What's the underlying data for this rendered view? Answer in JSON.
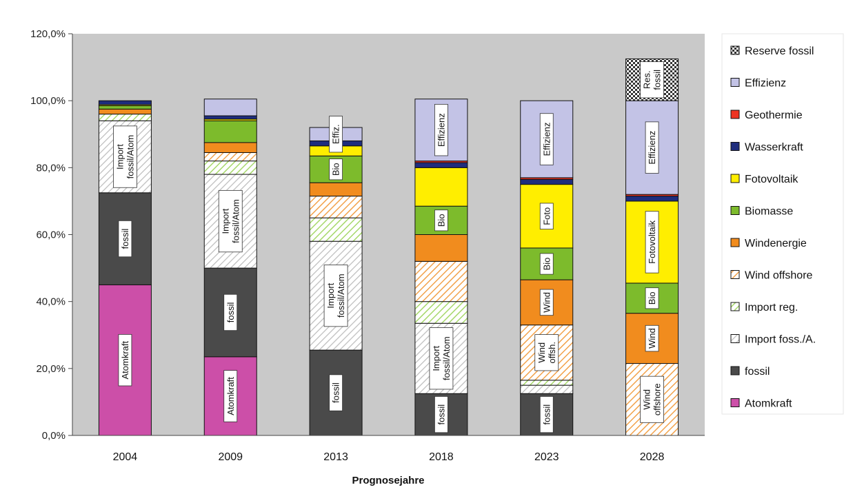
{
  "chart_data": {
    "type": "bar",
    "stacked": true,
    "xlabel": "Prognosejahre",
    "ylabel": "",
    "ylim": [
      0,
      120
    ],
    "yticks": [
      "0,0%",
      "20,0%",
      "40,0%",
      "60,0%",
      "80,0%",
      "100,0%",
      "120,0%"
    ],
    "categories": [
      "2004",
      "2009",
      "2013",
      "2018",
      "2023",
      "2028"
    ],
    "grid": false,
    "legend_position": "right",
    "series": [
      {
        "key": "atom",
        "name": "Atomkraft",
        "color": "#cc4fa8",
        "pattern": "solid",
        "values": [
          45,
          23.5,
          0,
          0,
          0,
          0
        ],
        "labels": [
          "Atomkraft",
          "Atomkraft",
          "",
          "",
          "",
          ""
        ]
      },
      {
        "key": "fossil",
        "name": "fossil",
        "color": "#4a4a4a",
        "pattern": "solid",
        "values": [
          27.5,
          26.5,
          25.5,
          12.5,
          12.5,
          0
        ],
        "labels": [
          "fossil",
          "fossil",
          "fossil",
          "fossil",
          "fossil",
          ""
        ]
      },
      {
        "key": "import_foss",
        "name": "Import foss./A.",
        "color": "#bdbdbd",
        "pattern": "hatch",
        "values": [
          21.5,
          28,
          32.5,
          21,
          2.5,
          0
        ],
        "labels": [
          "Import|fossil/Atom",
          "Import|fossil/Atom",
          "Import|fossil/Atom",
          "Import|fossil/Atom",
          "",
          ""
        ]
      },
      {
        "key": "import_reg",
        "name": "Import reg.",
        "color": "#a6d86a",
        "pattern": "hatch",
        "values": [
          2,
          4,
          7,
          6.5,
          1.5,
          0
        ],
        "labels": [
          "",
          "",
          "",
          "",
          "",
          ""
        ]
      },
      {
        "key": "wind_off",
        "name": "Wind offshore",
        "color": "#f2a24b",
        "pattern": "hatch",
        "values": [
          0,
          2.5,
          6.5,
          12,
          16.5,
          21.5
        ],
        "labels": [
          "",
          "",
          "",
          "",
          "Wind|offsh.",
          "Wind|offshore"
        ]
      },
      {
        "key": "wind",
        "name": "Windenergie",
        "color": "#f18c1e",
        "pattern": "solid",
        "values": [
          1.5,
          3,
          4,
          8,
          13.5,
          15
        ],
        "labels": [
          "",
          "",
          "",
          "",
          "Wind",
          "Wind"
        ]
      },
      {
        "key": "bio",
        "name": "Biomasse",
        "color": "#7dbb2c",
        "pattern": "solid",
        "values": [
          1,
          6.5,
          8,
          8.5,
          9.5,
          9
        ],
        "labels": [
          "",
          "",
          "Bio",
          "Bio",
          "Bio",
          "Bio"
        ]
      },
      {
        "key": "foto",
        "name": "Fotovoltaik",
        "color": "#ffee00",
        "pattern": "solid",
        "values": [
          0.3,
          0.5,
          3,
          11.5,
          19,
          24.5
        ],
        "labels": [
          "",
          "",
          "",
          "",
          "Foto",
          "Fotovoltaik"
        ]
      },
      {
        "key": "wasser",
        "name": "Wasserkraft",
        "color": "#1f2d7d",
        "pattern": "solid",
        "values": [
          1.2,
          1,
          1.5,
          1.5,
          1.5,
          1.5
        ],
        "labels": [
          "",
          "",
          "",
          "",
          "",
          ""
        ]
      },
      {
        "key": "geo",
        "name": "Geothermie",
        "color": "#ee3322",
        "pattern": "solid",
        "values": [
          0,
          0,
          0,
          0.5,
          0.5,
          0.5
        ],
        "labels": [
          "",
          "",
          "",
          "",
          "",
          ""
        ]
      },
      {
        "key": "eff",
        "name": "Effizienz",
        "color": "#c3c3e6",
        "pattern": "solid",
        "values": [
          0,
          5,
          4,
          18.5,
          23,
          28
        ],
        "labels": [
          "",
          "",
          "Effiz.",
          "Effizienz",
          "Effizienz",
          "Effizienz"
        ]
      },
      {
        "key": "reserve",
        "name": "Reserve fossil",
        "color": "#333333",
        "pattern": "checker",
        "values": [
          0,
          0,
          0,
          0,
          0,
          12.5
        ],
        "labels": [
          "",
          "",
          "",
          "",
          "",
          "Res.|fossil"
        ]
      }
    ]
  }
}
